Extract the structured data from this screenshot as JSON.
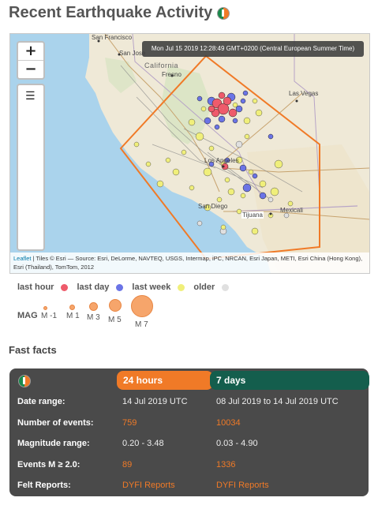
{
  "page": {
    "title": "Recent Earthquake Activity",
    "title_icon": "usgs-logo-icon"
  },
  "map": {
    "zoom_in": "+",
    "zoom_out": "−",
    "layers_icon": "☰",
    "tooltip": "Mon Jul 15 2019 12:28:49 GMT+0200 (Central European Summer Time)",
    "labels": {
      "san_francisco": "San Francisco",
      "san_jose": "San Jose",
      "california": "California",
      "fresno": "Fresno",
      "las_vegas": "Las Vegas",
      "los_angeles": "Los Angeles",
      "san_diego": "San Diego",
      "tijuana": "Tijuana",
      "mexicali": "Mexicali"
    },
    "attribution_link": "Leaflet",
    "attribution_text": " | Tiles © Esri — Source: Esri, DeLorme, NAVTEQ, USGS, Intermap, iPC, NRCAN, Esri Japan, METI, Esri China (Hong Kong), Esri (Thailand), TomTom, 2012",
    "colors": {
      "last_hour": "#ee5b6b",
      "last_day": "#6b74e6",
      "last_week": "#f0ef7a",
      "older": "#e0e0e0",
      "region": "#f07a27"
    }
  },
  "legend": {
    "age": [
      {
        "label": "last hour",
        "color": "#ee5b6b"
      },
      {
        "label": "last day",
        "color": "#6b74e6"
      },
      {
        "label": "last week",
        "color": "#f0ef7a"
      },
      {
        "label": "older",
        "color": "#e0e0e0"
      }
    ],
    "mag_label": "MAG",
    "mags": [
      "M -1",
      "M 1",
      "M 3",
      "M 5",
      "M 7"
    ]
  },
  "fast_facts": {
    "heading": "Fast facts",
    "col_24h": "24 hours",
    "col_7d": "7 days",
    "header_icon": "usgs-logo-icon",
    "rows": [
      {
        "label": "Date range:",
        "v24": "14 Jul 2019 UTC",
        "v7": "08 Jul 2019 to 14 Jul 2019 UTC"
      },
      {
        "label": "Number of events:",
        "v24": "759",
        "v7": "10034"
      },
      {
        "label": "Magnitude range:",
        "v24": "0.20 - 3.48",
        "v7": "0.03 - 4.90"
      },
      {
        "label": "Events M ≥ 2.0:",
        "v24": "89",
        "v7": "1336"
      },
      {
        "label": "Felt Reports:",
        "v24": "DYFI Reports",
        "v7": "DYFI Reports"
      }
    ]
  }
}
